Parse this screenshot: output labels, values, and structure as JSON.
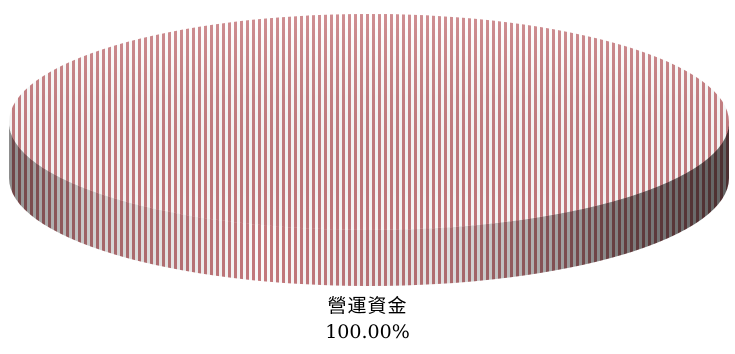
{
  "chart_data": {
    "type": "pie",
    "style": "3d",
    "title": "",
    "legend": "none",
    "slices": [
      {
        "label": "營運資金",
        "value": 100.0,
        "percent_label": "100.00%",
        "color": "#c77b7f",
        "pattern": "vertical-stripes"
      }
    ]
  }
}
